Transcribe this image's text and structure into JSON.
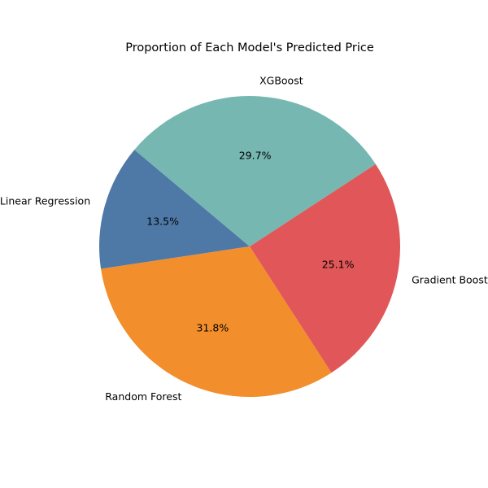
{
  "chart_data": {
    "type": "pie",
    "title": "Proportion of Each Model's Predicted Price",
    "categories": [
      "Linear Regression",
      "Random Forest",
      "Gradient Boosting",
      "XGBoost"
    ],
    "values": [
      13.5,
      31.8,
      25.1,
      29.7
    ],
    "percent_labels": [
      "13.5%",
      "31.8%",
      "25.1%",
      "29.7%"
    ],
    "colors": [
      "#4e79a7",
      "#f28e2b",
      "#e15759",
      "#76b7b2"
    ],
    "start_angle_deg": 140,
    "direction": "counterclockwise",
    "legend": "none"
  }
}
